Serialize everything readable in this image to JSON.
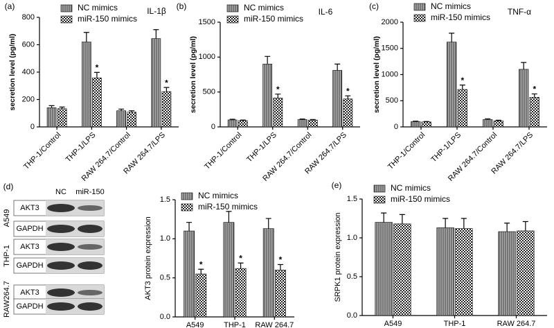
{
  "chart_data": [
    {
      "type": "bar",
      "panel": "(a)",
      "title": "IL-1β",
      "ylabel": "secretion level (pg/ml)",
      "categories": [
        "THP-1/Control",
        "THP-1/LPS",
        "RAW 264.7/Control",
        "RAW 264.7/LPS"
      ],
      "series": [
        {
          "name": "NC mimics",
          "color": "#000000",
          "pattern": "stripes",
          "values": [
            140,
            620,
            118,
            645
          ],
          "errors": [
            15,
            70,
            12,
            65
          ]
        },
        {
          "name": "miR-150 mimics",
          "color": "#000000",
          "pattern": "checker",
          "values": [
            133,
            358,
            108,
            258
          ],
          "errors": [
            12,
            40,
            10,
            30
          ],
          "significance": [
            null,
            "*",
            null,
            "*"
          ]
        }
      ],
      "ylim": [
        0,
        800
      ],
      "yticks": [
        0,
        200,
        400,
        600,
        800
      ]
    },
    {
      "type": "bar",
      "panel": "(b)",
      "title": "IL-6",
      "ylabel": "secretion level (pg/ml)",
      "categories": [
        "THP-1/Control",
        "THP-1/LPS",
        "RAW 264.7/Control",
        "RAW 264.7/LPS"
      ],
      "series": [
        {
          "name": "NC mimics",
          "color": "#000000",
          "pattern": "stripes",
          "values": [
            100,
            900,
            105,
            810
          ],
          "errors": [
            10,
            110,
            8,
            90
          ]
        },
        {
          "name": "miR-150 mimics",
          "color": "#000000",
          "pattern": "checker",
          "values": [
            90,
            415,
            98,
            400
          ],
          "errors": [
            8,
            55,
            8,
            45
          ],
          "significance": [
            null,
            "*",
            null,
            "*"
          ]
        }
      ],
      "ylim": [
        0,
        1500
      ],
      "yticks": [
        0,
        500,
        1000,
        1500
      ]
    },
    {
      "type": "bar",
      "panel": "(c)",
      "title": "TNF-α",
      "ylabel": "secretion level (pg/ml)",
      "categories": [
        "THP-1/Control",
        "THP-1/LPS",
        "RAW 264.7/Control",
        "RAW 264.7/LPS"
      ],
      "series": [
        {
          "name": "NC mimics",
          "color": "#000000",
          "pattern": "stripes",
          "values": [
            100,
            1620,
            140,
            1100
          ],
          "errors": [
            10,
            170,
            15,
            130
          ]
        },
        {
          "name": "miR-150 mimics",
          "color": "#000000",
          "pattern": "checker",
          "values": [
            95,
            715,
            115,
            565
          ],
          "errors": [
            8,
            85,
            12,
            65
          ],
          "significance": [
            null,
            "*",
            null,
            "*"
          ]
        }
      ],
      "ylim": [
        0,
        2000
      ],
      "yticks": [
        0,
        500,
        1000,
        1500,
        2000
      ]
    },
    {
      "type": "bar",
      "panel": "(d)",
      "ylabel": "AKT3 protein expression",
      "categories": [
        "A549",
        "THP-1",
        "RAW 264.7"
      ],
      "series": [
        {
          "name": "NC mimics",
          "color": "#000000",
          "pattern": "stripes",
          "values": [
            1.1,
            1.21,
            1.13
          ],
          "errors": [
            0.11,
            0.14,
            0.13
          ]
        },
        {
          "name": "miR-150 mimics",
          "color": "#000000",
          "pattern": "checker",
          "values": [
            0.55,
            0.62,
            0.6
          ],
          "errors": [
            0.06,
            0.07,
            0.07
          ],
          "significance": [
            "*",
            "*",
            "*"
          ]
        }
      ],
      "ylim": [
        0,
        1.5
      ],
      "yticks": [
        {
          "value": 0,
          "label": "0.0"
        },
        {
          "value": 0.5,
          "label": "0.5"
        },
        {
          "value": 1,
          "label": "1.0"
        },
        {
          "value": 1.5,
          "label": "1.5"
        }
      ]
    },
    {
      "type": "bar",
      "panel": "(e)",
      "ylabel": "SRPK1 protein expression",
      "categories": [
        "A549",
        "THP-1",
        "RAW 264.7"
      ],
      "series": [
        {
          "name": "NC mimics",
          "color": "#000000",
          "pattern": "stripes",
          "values": [
            1.2,
            1.13,
            1.08
          ],
          "errors": [
            0.12,
            0.12,
            0.11
          ]
        },
        {
          "name": "miR-150 mimics",
          "color": "#000000",
          "pattern": "checker",
          "values": [
            1.18,
            1.12,
            1.09
          ],
          "errors": [
            0.12,
            0.13,
            0.12
          ]
        }
      ],
      "ylim": [
        0,
        1.5
      ],
      "yticks": [
        {
          "value": 0,
          "label": "0.0"
        },
        {
          "value": 0.5,
          "label": "0.5"
        },
        {
          "value": 1,
          "label": "1.0"
        },
        {
          "value": 1.5,
          "label": "1.5"
        }
      ]
    }
  ],
  "blot": {
    "lanes": [
      "NC",
      "miR-150"
    ],
    "groups": [
      {
        "name": "A549",
        "rows": [
          "AKT3",
          "GAPDH"
        ]
      },
      {
        "name": "THP-1",
        "rows": [
          "AKT3",
          "GAPDH"
        ]
      },
      {
        "name": "RAW264.7",
        "rows": [
          "AKT3",
          "GAPDH"
        ]
      }
    ]
  }
}
